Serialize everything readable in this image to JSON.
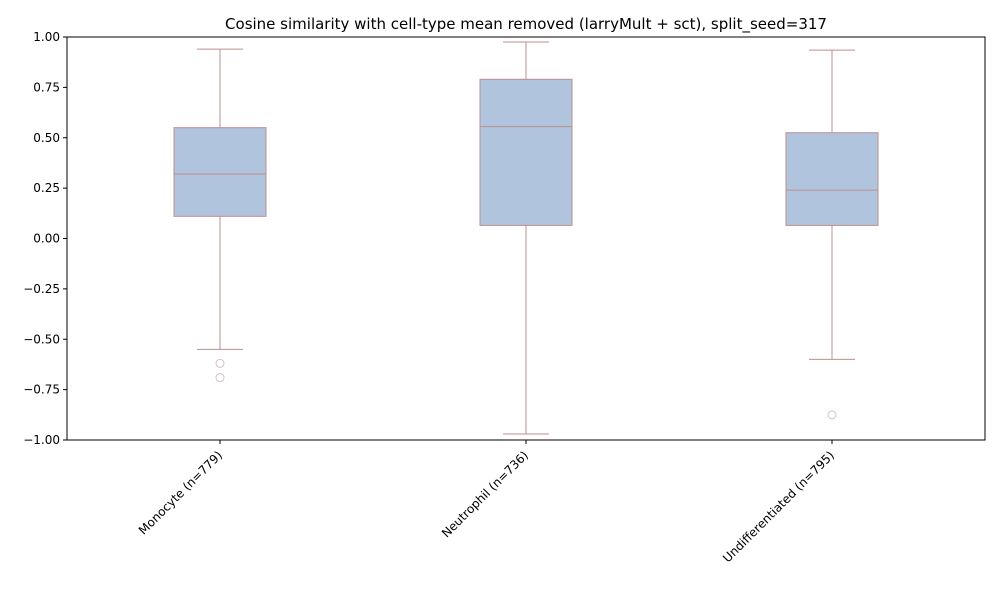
{
  "chart_data": {
    "type": "box",
    "title": "Cosine similarity with cell-type mean removed (larryMult + sct), split_seed=317",
    "xlabel": "",
    "ylabel": "",
    "ylim": [
      -1.0,
      1.0
    ],
    "yticks": [
      1.0,
      0.75,
      0.5,
      0.25,
      0.0,
      -0.25,
      -0.5,
      -0.75,
      -1.0
    ],
    "ytick_labels": [
      "1.00",
      "0.75",
      "0.50",
      "0.25",
      "0.00",
      "−0.25",
      "−0.50",
      "−0.75",
      "−1.00"
    ],
    "grid": false,
    "categories": [
      "Monocyte (n=779)",
      "Neutrophil (n=736)",
      "Undifferentiated (n=795)"
    ],
    "boxes": [
      {
        "whisker_low": -0.55,
        "q1": 0.11,
        "median": 0.32,
        "q3": 0.55,
        "whisker_high": 0.94,
        "outliers": [
          -0.62,
          -0.69
        ]
      },
      {
        "whisker_low": -0.97,
        "q1": 0.065,
        "median": 0.555,
        "q3": 0.79,
        "whisker_high": 0.975,
        "outliers": []
      },
      {
        "whisker_low": -0.6,
        "q1": 0.065,
        "median": 0.24,
        "q3": 0.525,
        "whisker_high": 0.935,
        "outliers": [
          -0.875
        ]
      }
    ],
    "colors": {
      "box_fill": "#b0c4de",
      "box_edge": "#bc8f8f",
      "outlier_edge": "#d3c4c8"
    }
  }
}
